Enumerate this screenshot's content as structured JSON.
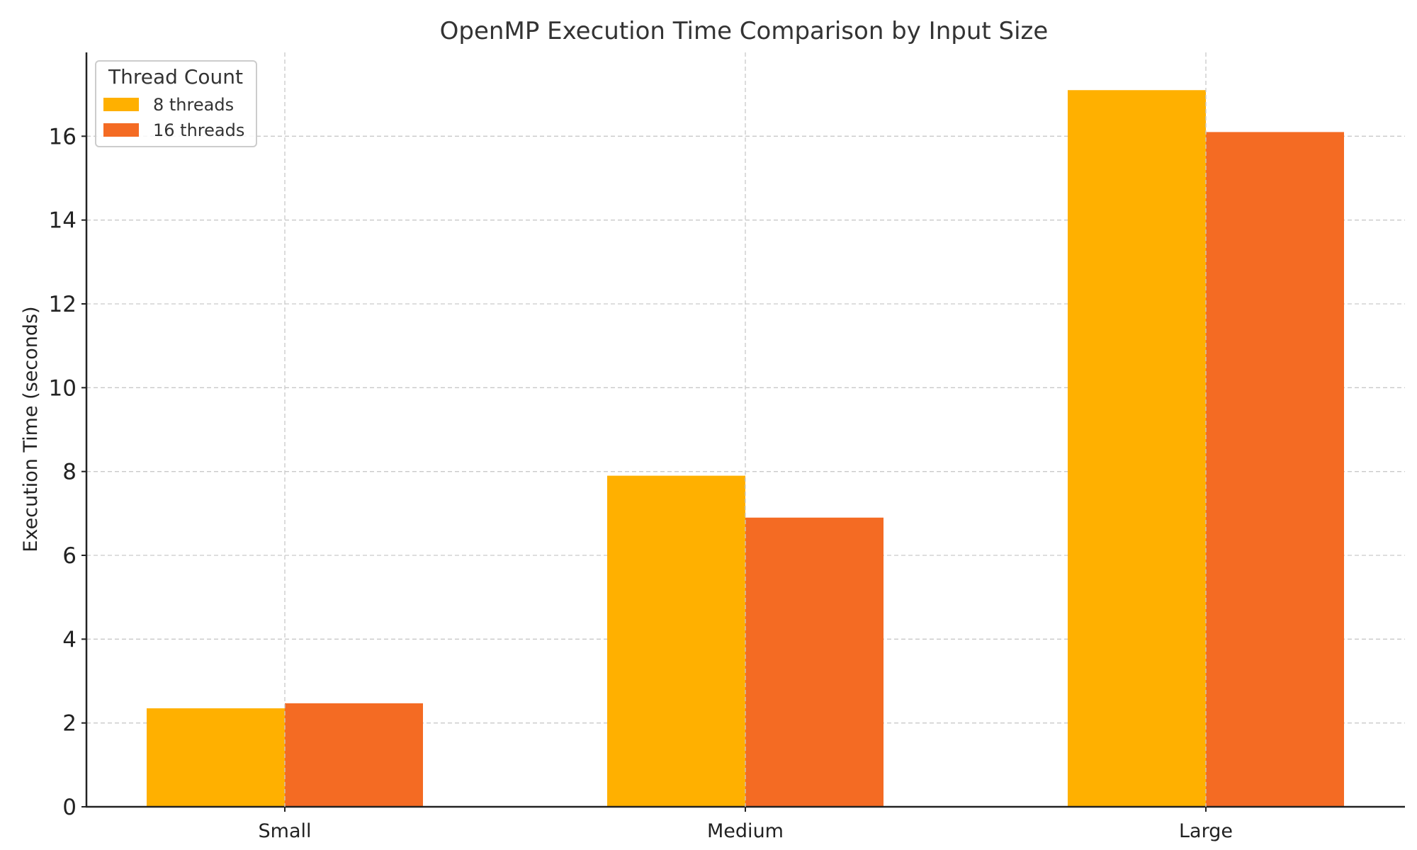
{
  "chart_data": {
    "type": "bar",
    "title": "OpenMP Execution Time Comparison by Input Size",
    "xlabel": "",
    "ylabel": "Execution Time (seconds)",
    "categories": [
      "Small",
      "Medium",
      "Large"
    ],
    "series": [
      {
        "name": "8 threads",
        "values": [
          2.35,
          7.9,
          17.1
        ],
        "color": "#FFB000"
      },
      {
        "name": "16 threads",
        "values": [
          2.47,
          6.9,
          16.1
        ],
        "color": "#F46B23"
      }
    ],
    "ylim": [
      0,
      18
    ],
    "yticks": [
      0,
      2,
      4,
      6,
      8,
      10,
      12,
      14,
      16
    ],
    "grid": true,
    "legend": {
      "title": "Thread Count",
      "placement": "top-left"
    }
  }
}
